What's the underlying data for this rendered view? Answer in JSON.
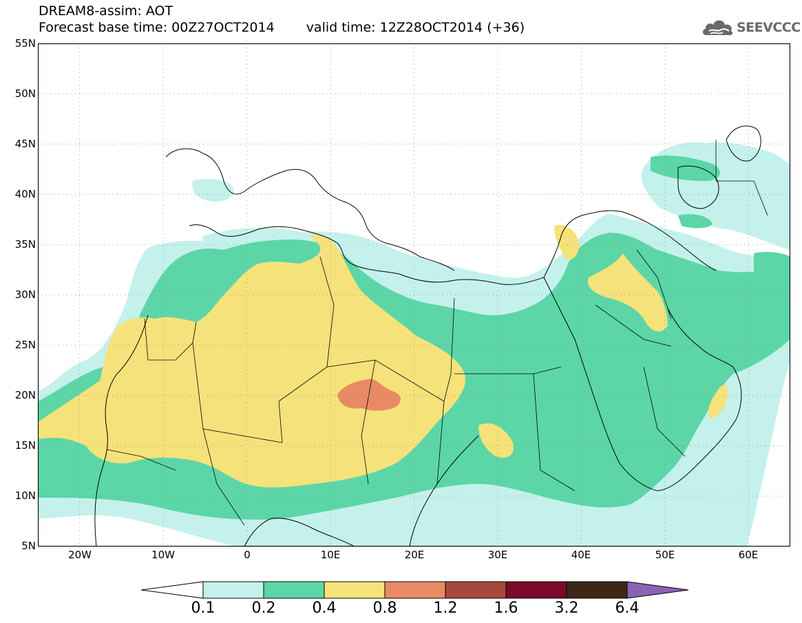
{
  "header": {
    "title_line1": "DREAM8-assim: AOT",
    "base_time": "Forecast base time: 00Z27OCT2014",
    "valid_time": "valid time: 12Z28OCT2014 (+36)"
  },
  "logo": {
    "text": "SEEVCCC",
    "icon": "cloud-logo-icon"
  },
  "map": {
    "lat_labels": [
      "55N",
      "50N",
      "45N",
      "40N",
      "35N",
      "30N",
      "25N",
      "20N",
      "15N",
      "10N",
      "5N"
    ],
    "lon_labels": [
      "20W",
      "10W",
      "0",
      "10E",
      "20E",
      "30E",
      "40E",
      "50E",
      "60E"
    ],
    "extent": {
      "lon_min": -25,
      "lon_max": 65,
      "lat_min": 5,
      "lat_max": 55
    }
  },
  "colorbar": {
    "labels": [
      "0.1",
      "0.2",
      "0.4",
      "0.8",
      "1.2",
      "1.6",
      "3.2",
      "6.4"
    ],
    "colors": [
      "#ffffff",
      "#c4f1ec",
      "#5cd6a6",
      "#f6e27a",
      "#e98a64",
      "#a54a3a",
      "#7a0a2a",
      "#3c2818",
      "#8a64b4"
    ]
  }
}
